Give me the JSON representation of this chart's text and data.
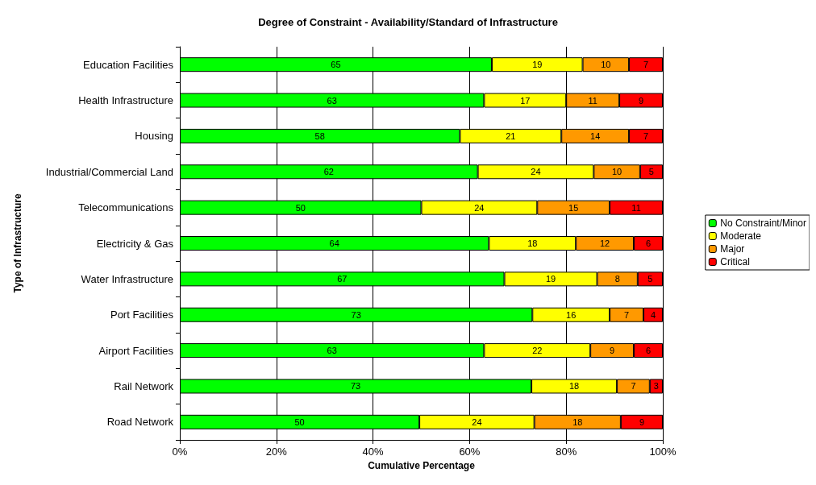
{
  "chart_data": {
    "type": "bar",
    "orientation": "horizontal",
    "stacked": true,
    "title": "Degree of Constraint - Availability/Standard of Infrastructure",
    "xlabel": "Cumulative Percentage",
    "ylabel": "Type of Infrastructure",
    "categories": [
      "Education Facilities",
      "Health Infrastructure",
      "Housing",
      "Industrial/Commercial Land",
      "Telecommunications",
      "Electricity & Gas",
      "Water Infrastructure",
      "Port Facilities",
      "Airport Facilities",
      "Rail Network",
      "Road Network"
    ],
    "series": [
      {
        "name": "No Constraint/Minor",
        "color": "#00ff00",
        "values": [
          64.6,
          63,
          58,
          61.7,
          50,
          64,
          67.2,
          73,
          63,
          72.8,
          49.6
        ],
        "value_labels": [
          "65",
          "63",
          "58",
          "62",
          "50",
          "64",
          "67",
          "73",
          "63",
          "73",
          "50"
        ]
      },
      {
        "name": "Moderate",
        "color": "#ffff00",
        "values": [
          18.8,
          17,
          21,
          24,
          24,
          18,
          19.2,
          16,
          22,
          17.7,
          23.8
        ],
        "value_labels": [
          "19",
          "17",
          "21",
          "24",
          "24",
          "18",
          "19",
          "16",
          "22",
          "18",
          "24"
        ]
      },
      {
        "name": "Major",
        "color": "#ff9900",
        "values": [
          9.6,
          11,
          14,
          9.6,
          15,
          12,
          8.4,
          7,
          9,
          6.8,
          17.9
        ],
        "value_labels": [
          "10",
          "11",
          "14",
          "10",
          "15",
          "12",
          "8",
          "7",
          "9",
          "7",
          "18"
        ]
      },
      {
        "name": "Critical",
        "color": "#ff0000",
        "values": [
          7.0,
          9,
          7,
          4.7,
          11,
          6,
          5.2,
          4,
          6,
          2.7,
          8.7
        ],
        "value_labels": [
          "7",
          "9",
          "7",
          "5",
          "11",
          "6",
          "5",
          "4",
          "6",
          "3",
          "9"
        ]
      }
    ],
    "xlim": [
      0,
      100
    ],
    "xticks": [
      {
        "value": 0,
        "label": "0%"
      },
      {
        "value": 20,
        "label": "20%"
      },
      {
        "value": 40,
        "label": "40%"
      },
      {
        "value": 60,
        "label": "60%"
      },
      {
        "value": 80,
        "label": "80%"
      },
      {
        "value": 100,
        "label": "100%"
      }
    ],
    "grid": "x",
    "legend": "right"
  }
}
